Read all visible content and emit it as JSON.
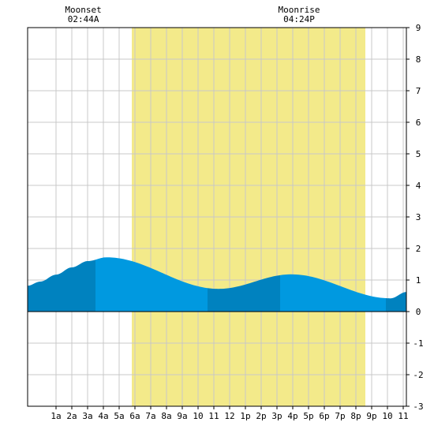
{
  "chart_data": {
    "type": "area",
    "title": "",
    "xlabel": "",
    "ylabel": "",
    "x_range_hours": [
      -0.8,
      23.2
    ],
    "ylim": [
      -3,
      9
    ],
    "y_ticks": [
      -3,
      -2,
      -1,
      0,
      1,
      2,
      3,
      4,
      5,
      6,
      7,
      8,
      9
    ],
    "x_ticks": [
      {
        "hour": 1,
        "label": "1a"
      },
      {
        "hour": 2,
        "label": "2a"
      },
      {
        "hour": 3,
        "label": "3a"
      },
      {
        "hour": 4,
        "label": "4a"
      },
      {
        "hour": 5,
        "label": "5a"
      },
      {
        "hour": 6,
        "label": "6a"
      },
      {
        "hour": 7,
        "label": "7a"
      },
      {
        "hour": 8,
        "label": "8a"
      },
      {
        "hour": 9,
        "label": "9a"
      },
      {
        "hour": 10,
        "label": "10"
      },
      {
        "hour": 11,
        "label": "11"
      },
      {
        "hour": 12,
        "label": "12"
      },
      {
        "hour": 13,
        "label": "1p"
      },
      {
        "hour": 14,
        "label": "2p"
      },
      {
        "hour": 15,
        "label": "3p"
      },
      {
        "hour": 16,
        "label": "4p"
      },
      {
        "hour": 17,
        "label": "5p"
      },
      {
        "hour": 18,
        "label": "6p"
      },
      {
        "hour": 19,
        "label": "7p"
      },
      {
        "hour": 20,
        "label": "8p"
      },
      {
        "hour": 21,
        "label": "9p"
      },
      {
        "hour": 22,
        "label": "10"
      },
      {
        "hour": 23,
        "label": "11"
      }
    ],
    "grid": true,
    "daylight": {
      "start_hour": 5.8,
      "end_hour": 20.6,
      "color": "#f3ea8a"
    },
    "events": [
      {
        "name": "Moonset",
        "time": "02:44A",
        "hour": 2.73
      },
      {
        "name": "Moonrise",
        "time": "04:24P",
        "hour": 16.4
      }
    ],
    "tide_extremes": [
      {
        "hour": 4.2,
        "height": 1.72
      },
      {
        "hour": 11.3,
        "height": 0.72
      },
      {
        "hour": 15.9,
        "height": 1.18
      },
      {
        "hour": 22.2,
        "height": 0.42
      }
    ],
    "tide_series": {
      "x": [
        -0.8,
        0,
        1,
        2,
        3,
        4.2,
        5,
        6,
        7,
        8,
        9,
        10,
        11.3,
        12,
        13,
        14,
        15,
        15.9,
        17,
        18,
        19,
        20,
        21,
        22.2,
        23.2
      ],
      "values": [
        0.82,
        0.95,
        1.17,
        1.4,
        1.6,
        1.72,
        1.68,
        1.56,
        1.39,
        1.2,
        1.0,
        0.83,
        0.72,
        0.75,
        0.86,
        0.99,
        1.12,
        1.18,
        1.12,
        0.97,
        0.79,
        0.61,
        0.47,
        0.42,
        0.62
      ]
    },
    "shade_bands": [
      {
        "from_hour": -0.8,
        "to_hour": 3.5,
        "color": "#0082bf"
      },
      {
        "from_hour": 3.5,
        "to_hour": 10.6,
        "color": "#0099e0"
      },
      {
        "from_hour": 10.6,
        "to_hour": 15.2,
        "color": "#0082bf"
      },
      {
        "from_hour": 15.2,
        "to_hour": 21.9,
        "color": "#0099e0"
      },
      {
        "from_hour": 21.9,
        "to_hour": 23.2,
        "color": "#0082bf"
      }
    ],
    "colors": {
      "grid": "#c8c8c8",
      "frame": "#000000",
      "zero_line": "#000000"
    }
  }
}
